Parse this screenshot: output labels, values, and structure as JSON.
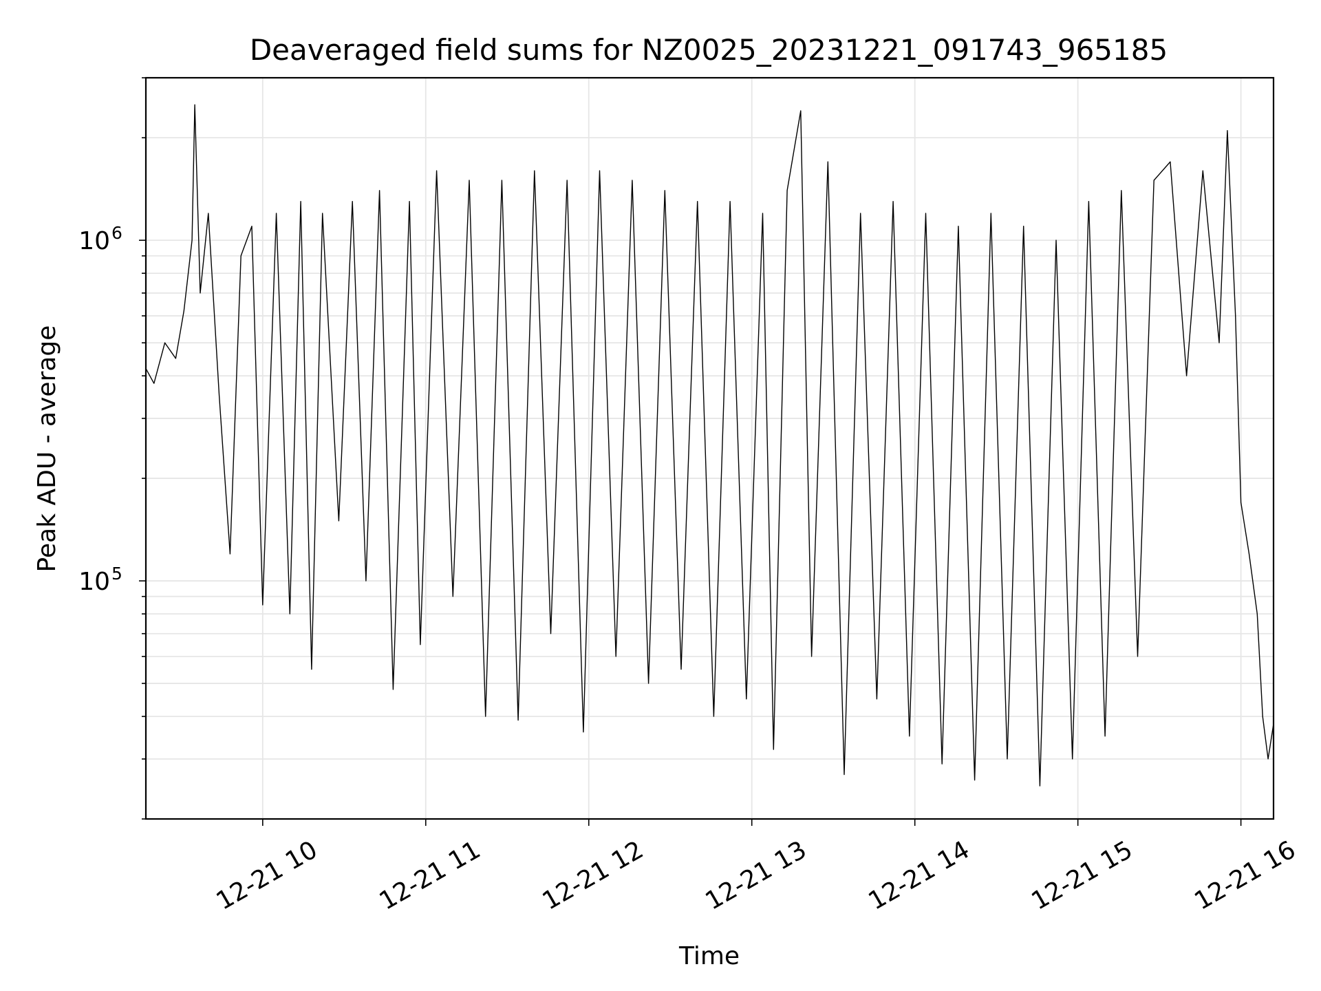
{
  "chart_data": {
    "type": "line",
    "title": "Deaveraged field sums for NZ0025_20231221_091743_965185",
    "xlabel": "Time",
    "ylabel": "Peak ADU - average",
    "xscale": "time",
    "yscale": "log",
    "xlim": [
      "2023-12-21 09:17",
      "2023-12-21 16:12"
    ],
    "ylim": [
      20000,
      3000000
    ],
    "grid": true,
    "line_color": "#000000",
    "x_ticks": [
      "12-21 10",
      "12-21 11",
      "12-21 12",
      "12-21 13",
      "12-21 14",
      "12-21 15",
      "12-21 16"
    ],
    "y_ticks": [
      {
        "value": 100000,
        "base": "10",
        "exp": "5"
      },
      {
        "value": 1000000,
        "base": "10",
        "exp": "6"
      }
    ],
    "series": [
      {
        "points": [
          [
            "2023-12-21 09:17",
            420000
          ],
          [
            "2023-12-21 09:20",
            380000
          ],
          [
            "2023-12-21 09:24",
            500000
          ],
          [
            "2023-12-21 09:28",
            450000
          ],
          [
            "2023-12-21 09:31",
            620000
          ],
          [
            "2023-12-21 09:34",
            1000000
          ],
          [
            "2023-12-21 09:35",
            2500000
          ],
          [
            "2023-12-21 09:37",
            700000
          ],
          [
            "2023-12-21 09:40",
            1200000
          ],
          [
            "2023-12-21 09:44",
            350000
          ],
          [
            "2023-12-21 09:48",
            120000
          ],
          [
            "2023-12-21 09:52",
            900000
          ],
          [
            "2023-12-21 09:56",
            1100000
          ],
          [
            "2023-12-21 10:00",
            85000
          ],
          [
            "2023-12-21 10:05",
            1200000
          ],
          [
            "2023-12-21 10:10",
            80000
          ],
          [
            "2023-12-21 10:14",
            1300000
          ],
          [
            "2023-12-21 10:18",
            55000
          ],
          [
            "2023-12-21 10:22",
            1200000
          ],
          [
            "2023-12-21 10:28",
            150000
          ],
          [
            "2023-12-21 10:33",
            1300000
          ],
          [
            "2023-12-21 10:38",
            100000
          ],
          [
            "2023-12-21 10:43",
            1400000
          ],
          [
            "2023-12-21 10:48",
            48000
          ],
          [
            "2023-12-21 10:54",
            1300000
          ],
          [
            "2023-12-21 10:58",
            65000
          ],
          [
            "2023-12-21 11:04",
            1600000
          ],
          [
            "2023-12-21 11:10",
            90000
          ],
          [
            "2023-12-21 11:16",
            1500000
          ],
          [
            "2023-12-21 11:22",
            40000
          ],
          [
            "2023-12-21 11:28",
            1500000
          ],
          [
            "2023-12-21 11:34",
            39000
          ],
          [
            "2023-12-21 11:40",
            1600000
          ],
          [
            "2023-12-21 11:46",
            70000
          ],
          [
            "2023-12-21 11:52",
            1500000
          ],
          [
            "2023-12-21 11:58",
            36000
          ],
          [
            "2023-12-21 12:04",
            1600000
          ],
          [
            "2023-12-21 12:10",
            60000
          ],
          [
            "2023-12-21 12:16",
            1500000
          ],
          [
            "2023-12-21 12:22",
            50000
          ],
          [
            "2023-12-21 12:28",
            1400000
          ],
          [
            "2023-12-21 12:34",
            55000
          ],
          [
            "2023-12-21 12:40",
            1300000
          ],
          [
            "2023-12-21 12:46",
            40000
          ],
          [
            "2023-12-21 12:52",
            1300000
          ],
          [
            "2023-12-21 12:58",
            45000
          ],
          [
            "2023-12-21 13:04",
            1200000
          ],
          [
            "2023-12-21 13:08",
            32000
          ],
          [
            "2023-12-21 13:13",
            1400000
          ],
          [
            "2023-12-21 13:18",
            2400000
          ],
          [
            "2023-12-21 13:22",
            60000
          ],
          [
            "2023-12-21 13:28",
            1700000
          ],
          [
            "2023-12-21 13:34",
            27000
          ],
          [
            "2023-12-21 13:40",
            1200000
          ],
          [
            "2023-12-21 13:46",
            45000
          ],
          [
            "2023-12-21 13:52",
            1300000
          ],
          [
            "2023-12-21 13:58",
            35000
          ],
          [
            "2023-12-21 14:04",
            1200000
          ],
          [
            "2023-12-21 14:10",
            29000
          ],
          [
            "2023-12-21 14:16",
            1100000
          ],
          [
            "2023-12-21 14:22",
            26000
          ],
          [
            "2023-12-21 14:28",
            1200000
          ],
          [
            "2023-12-21 14:34",
            30000
          ],
          [
            "2023-12-21 14:40",
            1100000
          ],
          [
            "2023-12-21 14:46",
            25000
          ],
          [
            "2023-12-21 14:52",
            1000000
          ],
          [
            "2023-12-21 14:58",
            30000
          ],
          [
            "2023-12-21 15:04",
            1300000
          ],
          [
            "2023-12-21 15:10",
            35000
          ],
          [
            "2023-12-21 15:16",
            1400000
          ],
          [
            "2023-12-21 15:22",
            60000
          ],
          [
            "2023-12-21 15:28",
            1500000
          ],
          [
            "2023-12-21 15:34",
            1700000
          ],
          [
            "2023-12-21 15:40",
            400000
          ],
          [
            "2023-12-21 15:46",
            1600000
          ],
          [
            "2023-12-21 15:52",
            500000
          ],
          [
            "2023-12-21 15:55",
            2100000
          ],
          [
            "2023-12-21 15:58",
            600000
          ],
          [
            "2023-12-21 16:00",
            170000
          ],
          [
            "2023-12-21 16:03",
            120000
          ],
          [
            "2023-12-21 16:06",
            80000
          ],
          [
            "2023-12-21 16:08",
            40000
          ],
          [
            "2023-12-21 16:10",
            30000
          ],
          [
            "2023-12-21 16:12",
            38000
          ]
        ]
      }
    ]
  }
}
